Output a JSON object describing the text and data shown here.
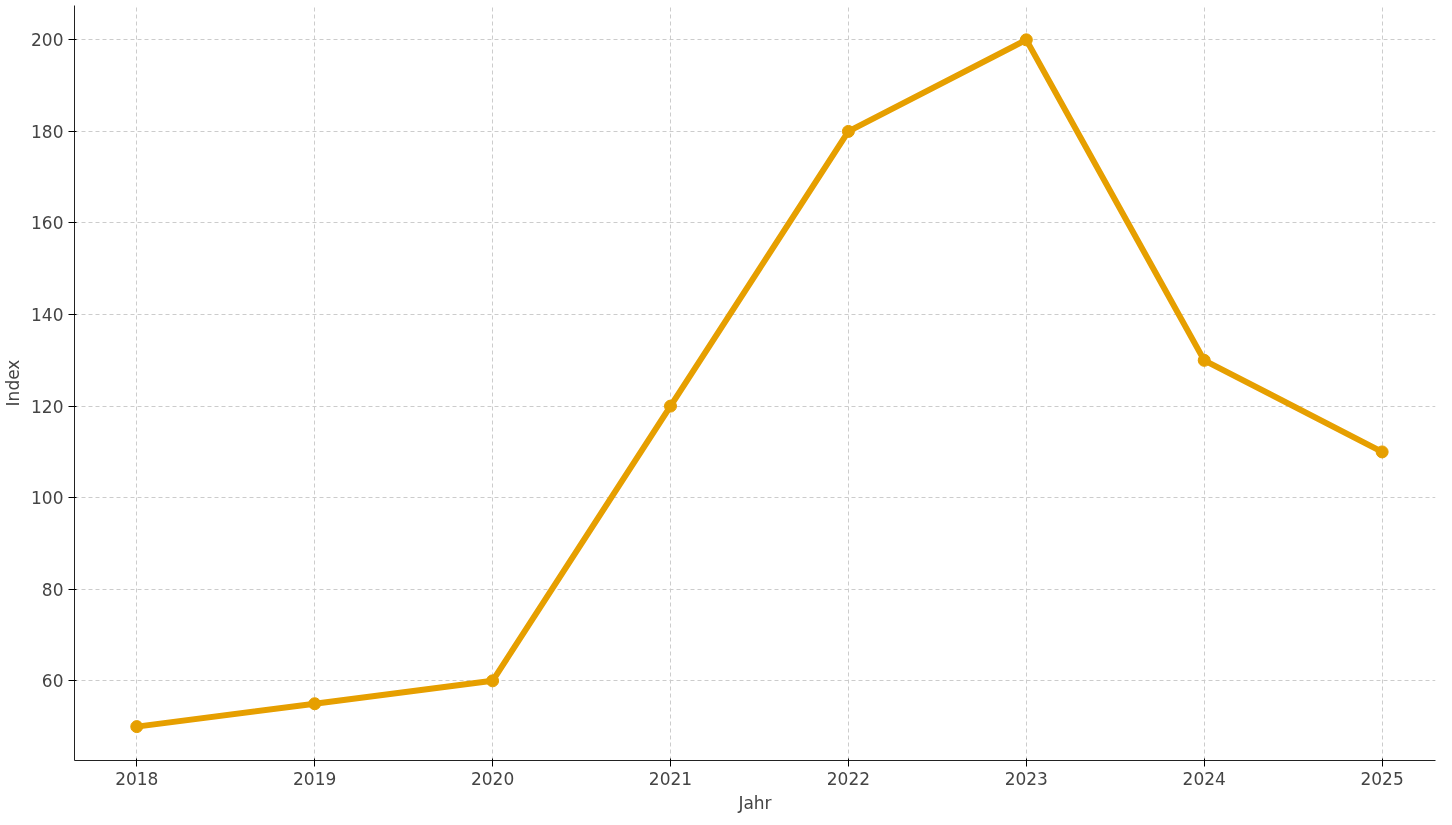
{
  "chart_data": {
    "type": "line",
    "xlabel": "Jahr",
    "ylabel": "Index",
    "x": [
      2018,
      2019,
      2020,
      2021,
      2022,
      2023,
      2024,
      2025
    ],
    "series": [
      {
        "color": "#e69f00",
        "values": [
          50,
          55,
          60,
          120,
          180,
          200,
          130,
          110
        ]
      }
    ],
    "xlim": [
      2017.65,
      2025.3
    ],
    "xticks": [
      2018,
      2019,
      2020,
      2021,
      2022,
      2023,
      2024,
      2025
    ],
    "ylim": [
      42.6,
      207.5
    ],
    "yticks": [
      60,
      80,
      100,
      120,
      140,
      160,
      180,
      200
    ],
    "grid": true,
    "marker": "circle",
    "line_style": "solid"
  }
}
